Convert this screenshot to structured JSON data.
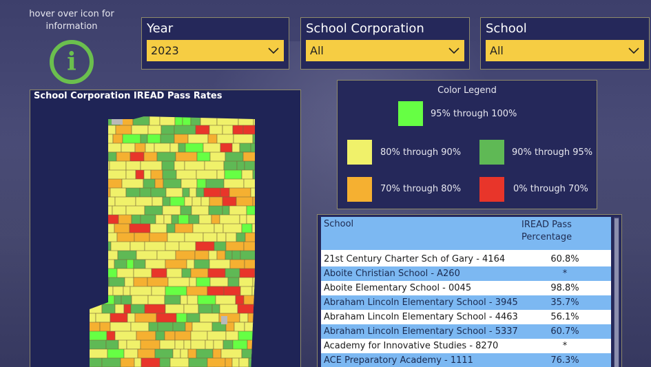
{
  "info": {
    "text": "hover over icon for information",
    "icon": "info-icon"
  },
  "slicers": [
    {
      "title": "Year",
      "value": "2023"
    },
    {
      "title": "School Corporation",
      "value": "All"
    },
    {
      "title": "School",
      "value": "All"
    }
  ],
  "map": {
    "title": "School Corporation IREAD Pass Rates"
  },
  "legend": {
    "title": "Color Legend",
    "items": [
      {
        "label": "95% through 100%",
        "color": "#66ff44"
      },
      {
        "label": "80% through 90%",
        "color": "#f0f16a"
      },
      {
        "label": "90% through 95%",
        "color": "#5fb955"
      },
      {
        "label": "70% through 80%",
        "color": "#f5b031"
      },
      {
        "label": "0% through 70%",
        "color": "#e8352a"
      }
    ]
  },
  "table": {
    "headers": [
      "School",
      "IREAD Pass Percentage"
    ],
    "rows": [
      {
        "school": "21st Century Charter Sch of Gary - 4164",
        "pct": "60.8%"
      },
      {
        "school": "Aboite Christian School - A260",
        "pct": "*"
      },
      {
        "school": "Aboite Elementary School - 0045",
        "pct": "98.8%"
      },
      {
        "school": "Abraham Lincoln Elementary School - 3945",
        "pct": "35.7%"
      },
      {
        "school": "Abraham Lincoln Elementary School - 4463",
        "pct": "56.1%"
      },
      {
        "school": "Abraham Lincoln Elementary School - 5337",
        "pct": "60.7%"
      },
      {
        "school": "Academy for Innovative Studies - 8270",
        "pct": "*"
      },
      {
        "school": "ACE Preparatory Academy - 1111",
        "pct": "76.3%"
      }
    ]
  }
}
